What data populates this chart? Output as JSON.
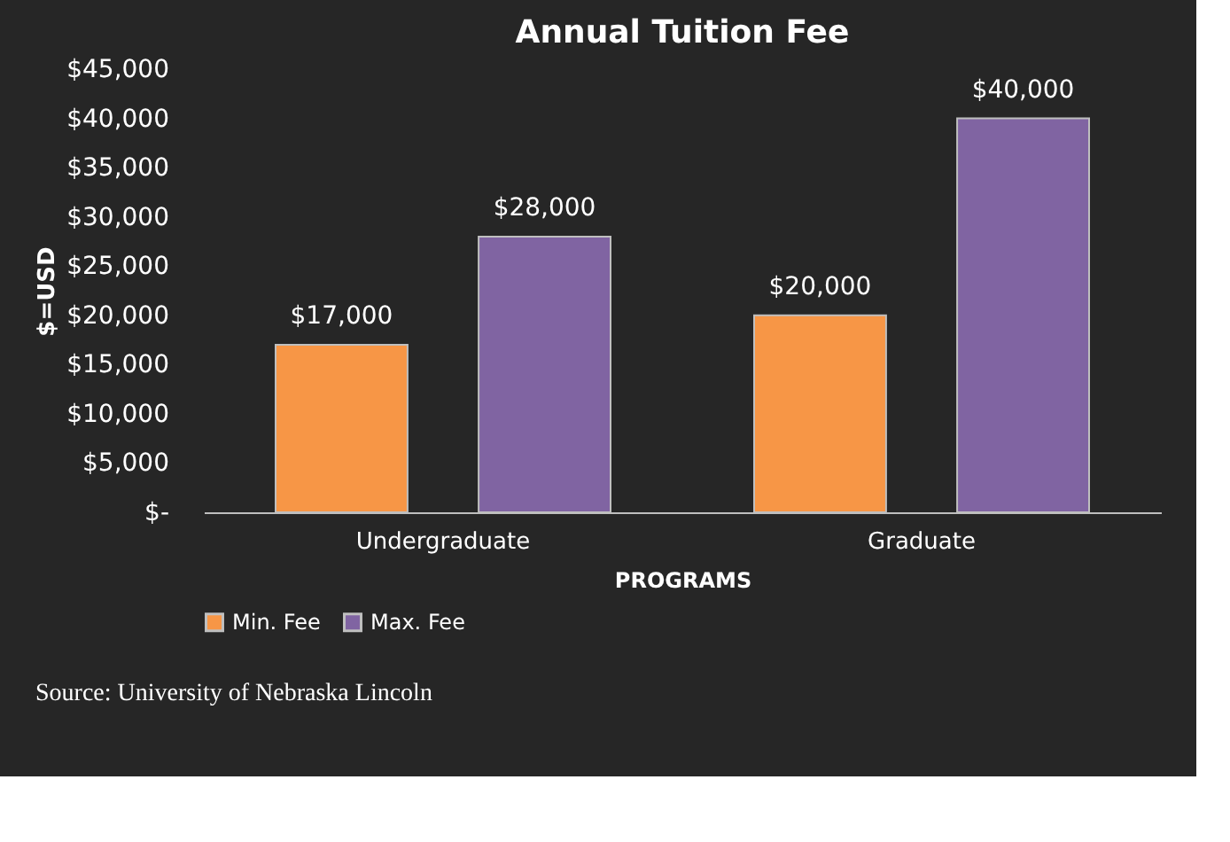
{
  "chart_data": {
    "type": "bar",
    "title": "Annual Tuition Fee",
    "xlabel": "PROGRAMS",
    "ylabel": "$=USD",
    "categories": [
      "Undergraduate",
      "Graduate"
    ],
    "series": [
      {
        "name": "Min. Fee",
        "color": "#f79646",
        "values": [
          17000,
          20000
        ],
        "value_labels": [
          "$17,000",
          "$20,000"
        ]
      },
      {
        "name": "Max. Fee",
        "color": "#8064a2",
        "values": [
          28000,
          40000
        ],
        "value_labels": [
          "$28,000",
          "$40,000"
        ]
      }
    ],
    "ylim": [
      0,
      45000
    ],
    "yticks": [
      {
        "value": 0,
        "label": "$-"
      },
      {
        "value": 5000,
        "label": "$5,000"
      },
      {
        "value": 10000,
        "label": "$10,000"
      },
      {
        "value": 15000,
        "label": "$15,000"
      },
      {
        "value": 20000,
        "label": "$20,000"
      },
      {
        "value": 25000,
        "label": "$25,000"
      },
      {
        "value": 30000,
        "label": "$30,000"
      },
      {
        "value": 35000,
        "label": "$35,000"
      },
      {
        "value": 40000,
        "label": "$40,000"
      },
      {
        "value": 45000,
        "label": "$45,000"
      }
    ],
    "grid": false,
    "legend": "bottom left",
    "annotations": [
      "Source: University of Nebraska Lincoln"
    ]
  }
}
